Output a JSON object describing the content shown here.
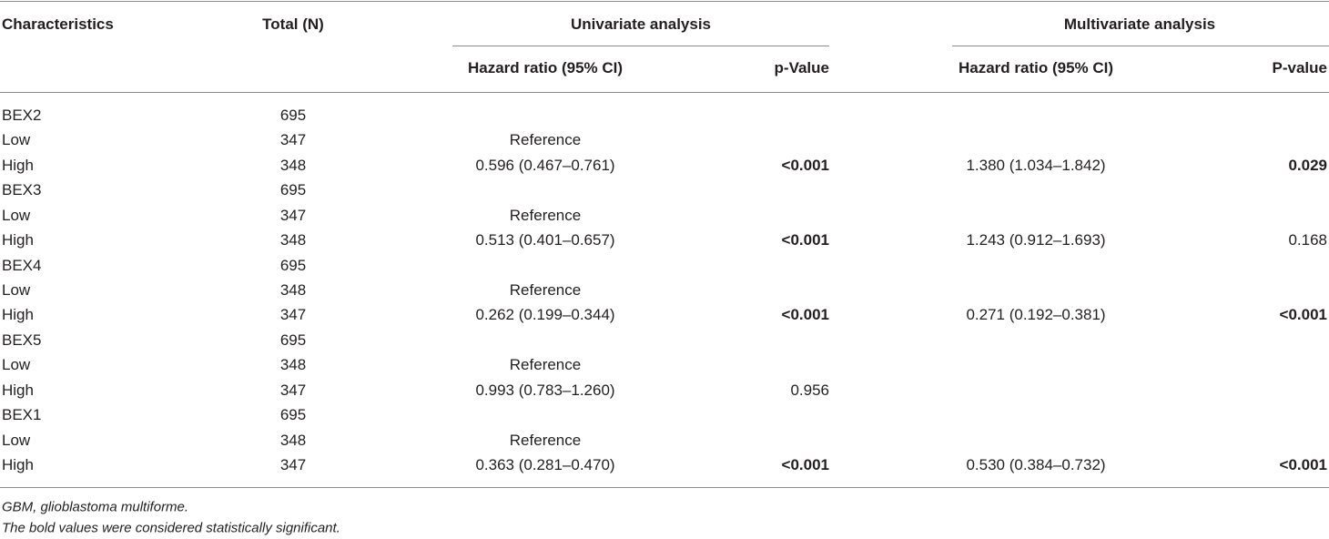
{
  "table": {
    "header": [
      "Characteristics",
      "Total (N)",
      "Univariate analysis",
      "Multivariate analysis"
    ],
    "subheader": [
      "Hazard ratio (95% CI)",
      "p-Value",
      "Hazard ratio (95% CI)",
      "P-value"
    ],
    "rows": [
      [
        "BEX2",
        695,
        null,
        null,
        null,
        null
      ],
      [
        "Low",
        347,
        "Reference",
        null,
        null,
        null
      ],
      [
        "High",
        348,
        "0.596 (0.467–0.761)",
        {
          "text": "<0.001",
          "bold": true
        },
        "1.380 (1.034–1.842)",
        {
          "text": "0.029",
          "bold": true
        }
      ],
      [
        "BEX3",
        695,
        null,
        null,
        null,
        null
      ],
      [
        "Low",
        347,
        "Reference",
        null,
        null,
        null
      ],
      [
        "High",
        348,
        "0.513 (0.401–0.657)",
        {
          "text": "<0.001",
          "bold": true
        },
        "1.243 (0.912–1.693)",
        "0.168"
      ],
      [
        "BEX4",
        695,
        null,
        null,
        null,
        null
      ],
      [
        "Low",
        348,
        "Reference",
        null,
        null,
        null
      ],
      [
        "High",
        347,
        "0.262 (0.199–0.344)",
        {
          "text": "<0.001",
          "bold": true
        },
        "0.271 (0.192–0.381)",
        {
          "text": "<0.001",
          "bold": true
        }
      ],
      [
        "BEX5",
        695,
        null,
        null,
        null,
        null
      ],
      [
        "Low",
        348,
        "Reference",
        null,
        null,
        null
      ],
      [
        "High",
        347,
        "0.993 (0.783–1.260)",
        "0.956",
        null,
        null
      ],
      [
        "BEX1",
        695,
        null,
        null,
        null,
        null
      ],
      [
        "Low",
        348,
        "Reference",
        null,
        null,
        null
      ],
      [
        "High",
        347,
        "0.363 (0.281–0.470)",
        {
          "text": "<0.001",
          "bold": true
        },
        "0.530 (0.384–0.732)",
        {
          "text": "<0.001",
          "bold": true
        }
      ]
    ]
  },
  "footnotes": [
    "GBM, glioblastoma multiforme.",
    "The bold values were considered statistically significant."
  ]
}
